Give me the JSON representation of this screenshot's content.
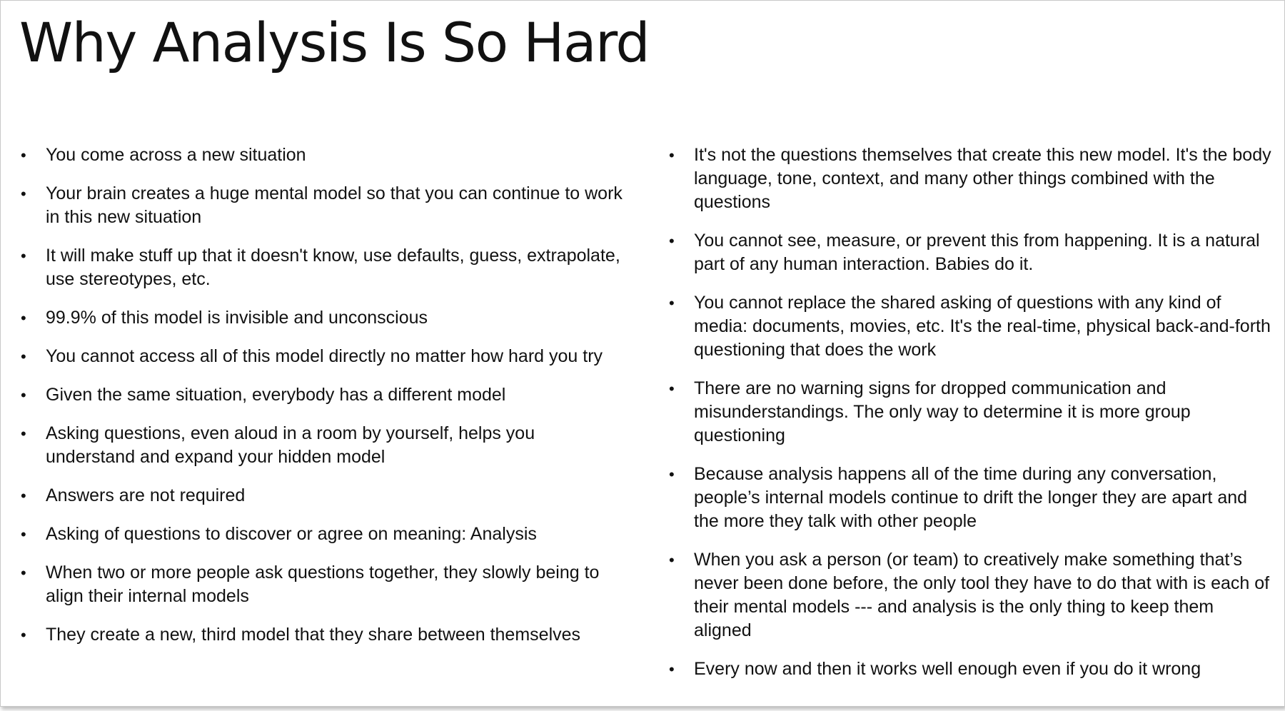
{
  "slide": {
    "title": "Why Analysis Is So Hard",
    "bullet_glyph": "•",
    "left_bullets": [
      "You come across a new situation",
      "Your brain creates a huge mental model so that you can continue to work in this new situation",
      "It will make stuff up that it doesn't know, use defaults, guess, extrapolate, use stereotypes, etc.",
      "99.9% of this model is invisible and unconscious",
      "You cannot access all of this model directly no matter how hard you try",
      "Given the same situation, everybody has a different model",
      "Asking questions, even aloud in a room by yourself, helps you understand and expand your hidden model",
      "Answers are not required",
      "Asking of questions to discover or agree on meaning: Analysis",
      "When two or more people ask questions together, they slowly being to align their internal models",
      "They create a new, third model that they share between themselves"
    ],
    "right_bullets": [
      "It's not the questions themselves that create this new model. It's the body language, tone, context, and many other things combined with the questions",
      "You cannot see, measure, or prevent this from happening. It is a natural part of any human interaction. Babies do it.",
      "You cannot replace the shared asking of questions with any kind of media: documents, movies, etc. It's the real-time, physical back-and-forth questioning that does the work",
      "There are no warning signs for dropped communication and misunderstandings. The only way to determine it is more group questioning",
      "Because analysis happens all of the time during any conversation, people’s internal models continue to drift the longer they are apart and the more they talk with other people",
      "When you ask a person (or team) to creatively make something that’s never been done before,  the only tool they have to do that with is each of their mental models --- and analysis is the only thing to keep them aligned",
      "Every now and then it works well enough even if you do it wrong"
    ]
  }
}
